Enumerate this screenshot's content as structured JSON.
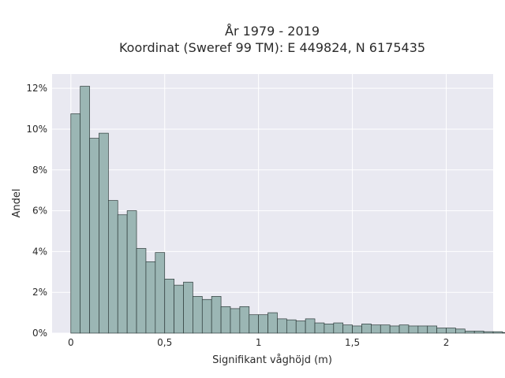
{
  "chart_data": {
    "type": "bar",
    "title": "År 1979 - 2019",
    "subtitle": "Koordinat (Sweref 99 TM): E 449824, N 6175435",
    "xlabel": "Signifikant våghöjd (m)",
    "ylabel": "Andel",
    "xlim": [
      -0.1,
      2.25
    ],
    "ylim": [
      0,
      0.127
    ],
    "bin_width": 0.05,
    "bin_start": 0.0,
    "values": [
      0.1075,
      0.121,
      0.0955,
      0.098,
      0.065,
      0.058,
      0.06,
      0.0415,
      0.035,
      0.0395,
      0.0265,
      0.0235,
      0.025,
      0.018,
      0.0165,
      0.018,
      0.013,
      0.012,
      0.013,
      0.009,
      0.009,
      0.01,
      0.007,
      0.0065,
      0.006,
      0.007,
      0.005,
      0.0045,
      0.005,
      0.004,
      0.0035,
      0.0045,
      0.004,
      0.004,
      0.0035,
      0.004,
      0.0035,
      0.0035,
      0.0035,
      0.0025,
      0.0025,
      0.002,
      0.001,
      0.001,
      0.0007,
      0.0007,
      0.0003,
      0.0003,
      0.0,
      0.0001,
      0.0,
      0.0001
    ],
    "x_ticks": [
      {
        "value": 0,
        "label": "0"
      },
      {
        "value": 0.5,
        "label": "0,5"
      },
      {
        "value": 1,
        "label": "1"
      },
      {
        "value": 1.5,
        "label": "1,5"
      },
      {
        "value": 2,
        "label": "2"
      }
    ],
    "y_ticks": [
      {
        "value": 0,
        "label": "0%"
      },
      {
        "value": 0.02,
        "label": "2%"
      },
      {
        "value": 0.04,
        "label": "4%"
      },
      {
        "value": 0.06,
        "label": "6%"
      },
      {
        "value": 0.08,
        "label": "8%"
      },
      {
        "value": 0.1,
        "label": "10%"
      },
      {
        "value": 0.12,
        "label": "12%"
      }
    ],
    "grid": true,
    "colors": {
      "bar_fill": "#9bb6b4",
      "bar_stroke": "#2e3b3a",
      "plot_bg": "#e9e9f1",
      "grid": "#ffffff"
    }
  }
}
